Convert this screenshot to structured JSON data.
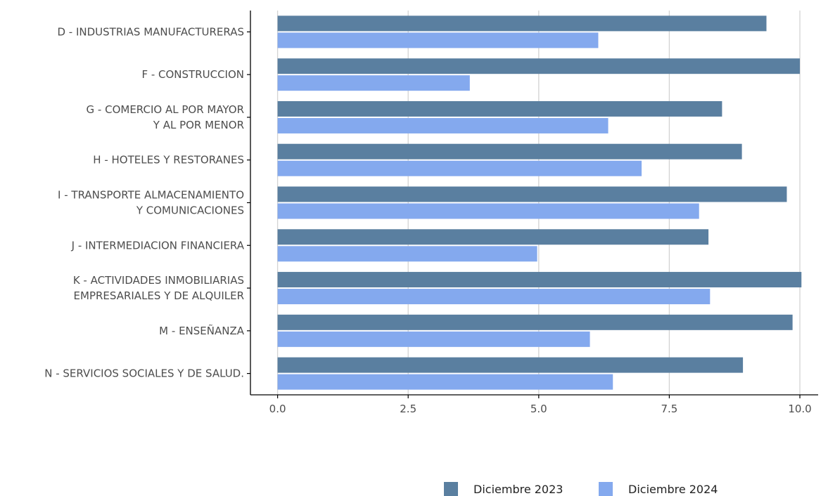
{
  "chart_data": {
    "type": "bar",
    "orientation": "horizontal",
    "categories": [
      [
        "D - INDUSTRIAS  MANUFACTURERAS"
      ],
      [
        "F - CONSTRUCCION"
      ],
      [
        "G - COMERCIO AL POR MAYOR",
        "Y AL POR  MENOR"
      ],
      [
        "H - HOTELES Y RESTORANES"
      ],
      [
        "I - TRANSPORTE ALMACENAMIENTO",
        "Y COMUNICACIONES"
      ],
      [
        "J - INTERMEDIACION FINANCIERA"
      ],
      [
        "K - ACTIVIDADES INMOBILIARIAS",
        "EMPRESARIALES Y DE ALQUILER"
      ],
      [
        "M - ENSEÑANZA"
      ],
      [
        "N - SERVICIOS SOCIALES Y DE SALUD."
      ]
    ],
    "series": [
      {
        "name": "Diciembre 2023",
        "color": "#5a7fa0",
        "values": [
          9.36,
          10.0,
          8.51,
          8.89,
          9.75,
          8.25,
          10.03,
          9.86,
          8.91
        ]
      },
      {
        "name": "Diciembre 2024",
        "color": "#84a9ee",
        "values": [
          6.14,
          3.68,
          6.33,
          6.97,
          8.07,
          4.97,
          8.28,
          5.98,
          6.42
        ]
      }
    ],
    "xlim": [
      -0.52,
      10.35
    ],
    "xticks": [
      "0.0",
      "2.5",
      "5.0",
      "7.5",
      "10.0"
    ],
    "xtick_values": [
      0,
      2.5,
      5,
      7.5,
      10
    ],
    "xlabel": "",
    "ylabel": "",
    "grid": "vertical",
    "legend_position": "bottom-right"
  }
}
